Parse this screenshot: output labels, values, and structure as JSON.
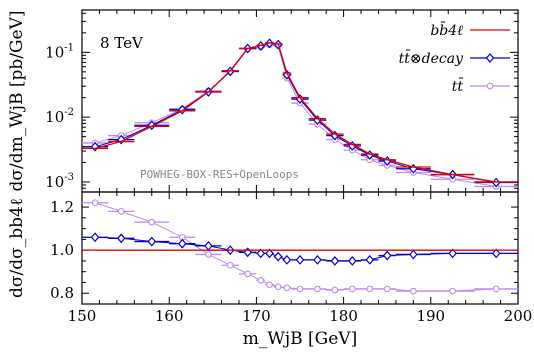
{
  "figure": {
    "energy_label": "8 TeV",
    "watermark": "POWHEG-BOX-RES+OpenLoops",
    "ylabel_top": "dσ/dm_WjB [pb/GeV]",
    "ylabel_bottom": "dσ/dσ_bb4ℓ",
    "xlabel": "m_WjB [GeV]"
  },
  "chart_data": [
    {
      "type": "line",
      "panel": "main",
      "title": "",
      "xlabel": "",
      "ylabel": "dσ/dm_WjB [pb/GeV]",
      "xlim": [
        150,
        200
      ],
      "ylim": [
        0.0007,
        0.45
      ],
      "yscale": "log",
      "yticks": [
        0.001,
        0.01,
        0.1
      ],
      "ytick_labels": [
        "10^-3",
        "10^-2",
        "10^-1"
      ],
      "legend_position": "top-right",
      "bin_edges": [
        150,
        153,
        156,
        160,
        163,
        166,
        168,
        170,
        171,
        172,
        173,
        174,
        176,
        178,
        180,
        182,
        184,
        186,
        190,
        195,
        200
      ],
      "series": [
        {
          "name": "bb̄4ℓ",
          "color": "#dd0000",
          "marker": "none",
          "values": [
            0.0033,
            0.0042,
            0.0072,
            0.0125,
            0.0245,
            0.052,
            0.115,
            0.128,
            0.14,
            0.135,
            0.048,
            0.02,
            0.0095,
            0.0055,
            0.0038,
            0.0027,
            0.0022,
            0.0017,
            0.0013,
            0.001
          ]
        },
        {
          "name": "tt̄⊗decay",
          "color": "#0000cc",
          "marker": "diamond",
          "values": [
            0.0035,
            0.0045,
            0.0075,
            0.013,
            0.0245,
            0.051,
            0.115,
            0.126,
            0.138,
            0.132,
            0.045,
            0.019,
            0.009,
            0.0052,
            0.0036,
            0.0026,
            0.0021,
            0.0016,
            0.0013,
            0.00098
          ]
        },
        {
          "name": "tt̄",
          "color": "#bb88ee",
          "marker": "circle",
          "values": [
            0.004,
            0.0052,
            0.0082,
            0.0135,
            0.0255,
            0.05,
            0.112,
            0.12,
            0.13,
            0.125,
            0.04,
            0.0165,
            0.0078,
            0.0045,
            0.0031,
            0.0022,
            0.0018,
            0.0014,
            0.0011,
            0.00085
          ]
        }
      ]
    },
    {
      "type": "line",
      "panel": "ratio",
      "title": "",
      "xlabel": "m_WjB [GeV]",
      "ylabel": "dσ/dσ_bb4ℓ",
      "xlim": [
        150,
        200
      ],
      "ylim": [
        0.75,
        1.27
      ],
      "xticks": [
        150,
        160,
        170,
        180,
        190,
        200
      ],
      "yticks": [
        0.8,
        1.0,
        1.2
      ],
      "bin_edges": [
        150,
        153,
        156,
        160,
        163,
        166,
        168,
        170,
        171,
        172,
        173,
        174,
        176,
        178,
        180,
        182,
        184,
        186,
        190,
        195,
        200
      ],
      "series": [
        {
          "name": "bb̄4ℓ",
          "color": "#dd0000",
          "marker": "none",
          "values": [
            1.0,
            1.0,
            1.0,
            1.0,
            1.0,
            1.0,
            1.0,
            1.0,
            1.0,
            1.0,
            1.0,
            1.0,
            1.0,
            1.0,
            1.0,
            1.0,
            1.0,
            1.0,
            1.0,
            1.0
          ]
        },
        {
          "name": "tt̄⊗decay",
          "color": "#0000cc",
          "marker": "diamond",
          "values": [
            1.06,
            1.055,
            1.04,
            1.03,
            1.02,
            1.0,
            0.99,
            0.985,
            0.985,
            0.97,
            0.955,
            0.955,
            0.955,
            0.95,
            0.95,
            0.955,
            0.975,
            0.98,
            0.985,
            0.985
          ]
        },
        {
          "name": "tt̄",
          "color": "#bb88ee",
          "marker": "circle",
          "values": [
            1.22,
            1.18,
            1.13,
            1.06,
            0.98,
            0.93,
            0.89,
            0.86,
            0.84,
            0.83,
            0.825,
            0.82,
            0.82,
            0.815,
            0.82,
            0.82,
            0.82,
            0.81,
            0.81,
            0.82
          ]
        }
      ]
    }
  ]
}
